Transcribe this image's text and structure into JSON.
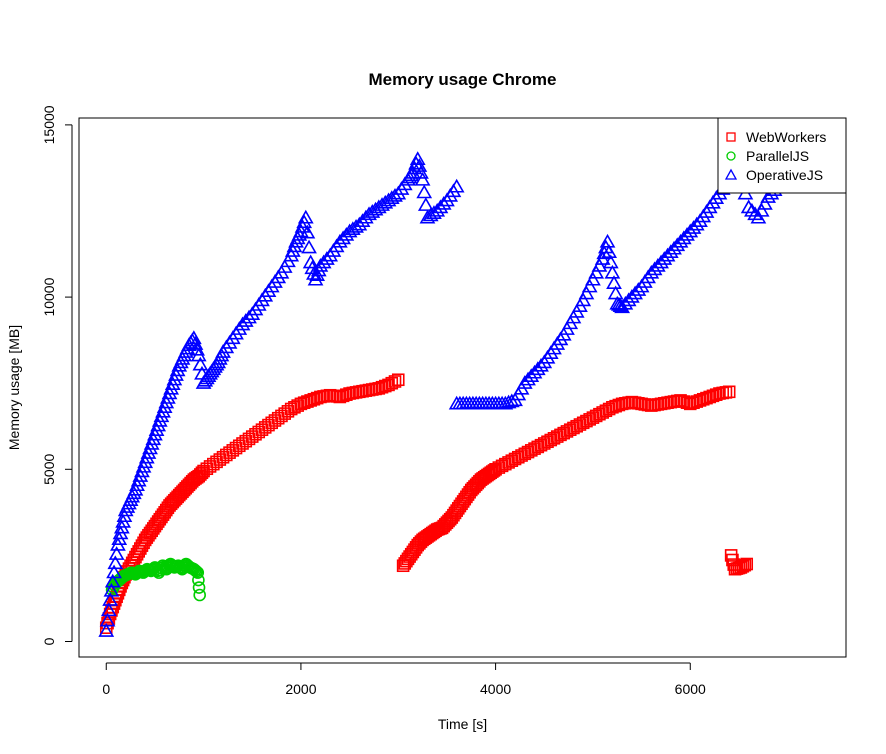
{
  "chart_data": {
    "type": "scatter",
    "title": "Memory usage Chrome",
    "xlabel": "Time [s]",
    "ylabel": "Memory usage [MB]",
    "xlim": [
      -280,
      7600
    ],
    "ylim": [
      -450,
      15200
    ],
    "xticks": [
      0,
      2000,
      4000,
      6000
    ],
    "xtick_labels": [
      "0",
      "2000",
      "4000",
      "6000"
    ],
    "yticks": [
      0,
      5000,
      10000,
      15000
    ],
    "ytick_labels": [
      "0",
      "5000",
      "10000",
      "15000"
    ],
    "grid": false,
    "legend": "top-right",
    "series": [
      {
        "name": "WebWorkers",
        "marker": "square",
        "color": "#ff0000",
        "points": [
          [
            0,
            400
          ],
          [
            40,
            800
          ],
          [
            80,
            1100
          ],
          [
            120,
            1400
          ],
          [
            160,
            1700
          ],
          [
            200,
            1950
          ],
          [
            250,
            2200
          ],
          [
            300,
            2450
          ],
          [
            350,
            2700
          ],
          [
            400,
            2950
          ],
          [
            450,
            3150
          ],
          [
            500,
            3350
          ],
          [
            550,
            3550
          ],
          [
            600,
            3750
          ],
          [
            650,
            3950
          ],
          [
            700,
            4100
          ],
          [
            750,
            4250
          ],
          [
            800,
            4400
          ],
          [
            850,
            4550
          ],
          [
            900,
            4700
          ],
          [
            950,
            4800
          ],
          [
            1000,
            4950
          ],
          [
            1100,
            5150
          ],
          [
            1200,
            5350
          ],
          [
            1300,
            5550
          ],
          [
            1400,
            5750
          ],
          [
            1500,
            5950
          ],
          [
            1600,
            6150
          ],
          [
            1700,
            6350
          ],
          [
            1800,
            6550
          ],
          [
            1900,
            6750
          ],
          [
            2000,
            6900
          ],
          [
            2100,
            7000
          ],
          [
            2200,
            7100
          ],
          [
            2300,
            7150
          ],
          [
            2400,
            7100
          ],
          [
            2500,
            7200
          ],
          [
            2600,
            7250
          ],
          [
            2700,
            7300
          ],
          [
            2800,
            7350
          ],
          [
            2900,
            7450
          ],
          [
            3000,
            7600
          ],
          [
            3050,
            2200
          ],
          [
            3100,
            2400
          ],
          [
            3150,
            2600
          ],
          [
            3200,
            2800
          ],
          [
            3250,
            2950
          ],
          [
            3300,
            3050
          ],
          [
            3350,
            3150
          ],
          [
            3400,
            3250
          ],
          [
            3450,
            3300
          ],
          [
            3500,
            3450
          ],
          [
            3550,
            3600
          ],
          [
            3600,
            3800
          ],
          [
            3650,
            4000
          ],
          [
            3700,
            4200
          ],
          [
            3750,
            4400
          ],
          [
            3800,
            4550
          ],
          [
            3850,
            4700
          ],
          [
            3900,
            4800
          ],
          [
            3950,
            4900
          ],
          [
            4000,
            5000
          ],
          [
            4100,
            5150
          ],
          [
            4200,
            5300
          ],
          [
            4300,
            5450
          ],
          [
            4400,
            5600
          ],
          [
            4500,
            5750
          ],
          [
            4600,
            5900
          ],
          [
            4700,
            6050
          ],
          [
            4800,
            6200
          ],
          [
            4900,
            6350
          ],
          [
            5000,
            6500
          ],
          [
            5100,
            6650
          ],
          [
            5200,
            6800
          ],
          [
            5300,
            6900
          ],
          [
            5400,
            6950
          ],
          [
            5500,
            6900
          ],
          [
            5600,
            6850
          ],
          [
            5700,
            6900
          ],
          [
            5800,
            6950
          ],
          [
            5900,
            7000
          ],
          [
            6000,
            6900
          ],
          [
            6100,
            7000
          ],
          [
            6200,
            7100
          ],
          [
            6300,
            7200
          ],
          [
            6400,
            7250
          ],
          [
            6420,
            2500
          ],
          [
            6460,
            2100
          ],
          [
            6520,
            2150
          ],
          [
            6580,
            2250
          ]
        ]
      },
      {
        "name": "ParallelJS",
        "marker": "circle",
        "color": "#00cd00",
        "points": [
          [
            60,
            1500
          ],
          [
            100,
            1700
          ],
          [
            140,
            1800
          ],
          [
            180,
            1900
          ],
          [
            220,
            1950
          ],
          [
            260,
            2000
          ],
          [
            300,
            1950
          ],
          [
            340,
            2050
          ],
          [
            380,
            2000
          ],
          [
            420,
            2100
          ],
          [
            460,
            2050
          ],
          [
            500,
            2150
          ],
          [
            540,
            2000
          ],
          [
            580,
            2200
          ],
          [
            620,
            2100
          ],
          [
            660,
            2250
          ],
          [
            700,
            2150
          ],
          [
            740,
            2200
          ],
          [
            780,
            2100
          ],
          [
            820,
            2250
          ],
          [
            860,
            2150
          ],
          [
            900,
            2100
          ],
          [
            940,
            2000
          ],
          [
            960,
            1350
          ]
        ]
      },
      {
        "name": "OperativeJS",
        "marker": "triangle",
        "color": "#0000ff",
        "points": [
          [
            0,
            300
          ],
          [
            40,
            1200
          ],
          [
            80,
            2000
          ],
          [
            120,
            2800
          ],
          [
            160,
            3300
          ],
          [
            200,
            3800
          ],
          [
            250,
            4100
          ],
          [
            300,
            4400
          ],
          [
            350,
            4800
          ],
          [
            400,
            5200
          ],
          [
            450,
            5600
          ],
          [
            500,
            6000
          ],
          [
            550,
            6400
          ],
          [
            600,
            6800
          ],
          [
            650,
            7200
          ],
          [
            700,
            7600
          ],
          [
            750,
            8000
          ],
          [
            800,
            8300
          ],
          [
            850,
            8600
          ],
          [
            900,
            8800
          ],
          [
            950,
            8300
          ],
          [
            1000,
            7500
          ],
          [
            1050,
            7700
          ],
          [
            1100,
            7900
          ],
          [
            1150,
            8100
          ],
          [
            1200,
            8400
          ],
          [
            1300,
            8800
          ],
          [
            1400,
            9200
          ],
          [
            1500,
            9500
          ],
          [
            1600,
            9900
          ],
          [
            1700,
            10300
          ],
          [
            1800,
            10700
          ],
          [
            1900,
            11200
          ],
          [
            1950,
            11600
          ],
          [
            2000,
            11900
          ],
          [
            2050,
            12300
          ],
          [
            2100,
            11000
          ],
          [
            2150,
            10500
          ],
          [
            2200,
            10900
          ],
          [
            2300,
            11200
          ],
          [
            2400,
            11600
          ],
          [
            2500,
            11900
          ],
          [
            2600,
            12100
          ],
          [
            2700,
            12400
          ],
          [
            2800,
            12600
          ],
          [
            2900,
            12800
          ],
          [
            3000,
            13000
          ],
          [
            3100,
            13400
          ],
          [
            3150,
            13600
          ],
          [
            3200,
            14000
          ],
          [
            3250,
            13400
          ],
          [
            3300,
            12300
          ],
          [
            3400,
            12500
          ],
          [
            3500,
            12800
          ],
          [
            3600,
            13200
          ],
          [
            3600,
            6900
          ],
          [
            3700,
            6900
          ],
          [
            3800,
            6900
          ],
          [
            3900,
            6900
          ],
          [
            4000,
            6900
          ],
          [
            4100,
            6900
          ],
          [
            4200,
            7000
          ],
          [
            4300,
            7500
          ],
          [
            4400,
            7800
          ],
          [
            4500,
            8100
          ],
          [
            4600,
            8500
          ],
          [
            4700,
            8900
          ],
          [
            4800,
            9400
          ],
          [
            4900,
            9900
          ],
          [
            5000,
            10500
          ],
          [
            5100,
            11100
          ],
          [
            5150,
            11600
          ],
          [
            5200,
            10700
          ],
          [
            5250,
            9800
          ],
          [
            5300,
            9700
          ],
          [
            5400,
            10000
          ],
          [
            5500,
            10300
          ],
          [
            5600,
            10700
          ],
          [
            5700,
            11000
          ],
          [
            5800,
            11300
          ],
          [
            5900,
            11600
          ],
          [
            6000,
            11900
          ],
          [
            6100,
            12200
          ],
          [
            6200,
            12600
          ],
          [
            6300,
            13000
          ],
          [
            6400,
            13400
          ],
          [
            6500,
            13800
          ],
          [
            6600,
            12600
          ],
          [
            6700,
            12300
          ],
          [
            6800,
            12900
          ],
          [
            6900,
            13200
          ],
          [
            7000,
            13500
          ],
          [
            7100,
            13700
          ],
          [
            7200,
            13900
          ]
        ]
      }
    ]
  }
}
